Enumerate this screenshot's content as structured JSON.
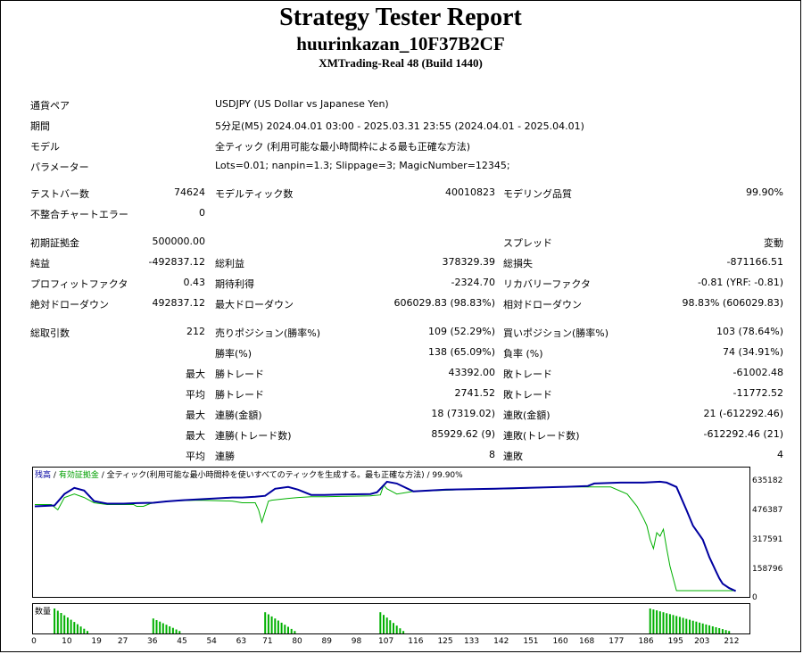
{
  "header": {
    "title": "Strategy Tester Report",
    "ea_name": "huurinkazan_10F37B2CF",
    "server": "XMTrading-Real 48 (Build 1440)"
  },
  "settings": [
    {
      "label": "通貨ペア",
      "value": "USDJPY (US Dollar vs Japanese Yen)"
    },
    {
      "label": "期間",
      "value": "5分足(M5) 2024.04.01 03:00 - 2025.03.31 23:55 (2024.04.01 - 2025.04.01)"
    },
    {
      "label": "モデル",
      "value": "全ティック (利用可能な最小時間枠による最も正確な方法)"
    },
    {
      "label": "パラメーター",
      "value": "Lots=0.01; nanpin=1.3; Slippage=3; MagicNumber=12345;"
    }
  ],
  "stats": {
    "test_bars": {
      "label": "テストバー数",
      "value": "74624"
    },
    "model_ticks": {
      "label": "モデルティック数",
      "value": "40010823"
    },
    "model_quality": {
      "label": "モデリング品質",
      "value": "99.90%"
    },
    "mismatch_errors": {
      "label": "不整合チャートエラー",
      "value": "0"
    },
    "initial_deposit": {
      "label": "初期証拠金",
      "value": "500000.00"
    },
    "spread": {
      "label": "スプレッド",
      "value": "変動"
    },
    "net_profit": {
      "label": "純益",
      "value": "-492837.12"
    },
    "gross_profit": {
      "label": "総利益",
      "value": "378329.39"
    },
    "gross_loss": {
      "label": "総損失",
      "value": "-871166.51"
    },
    "profit_factor": {
      "label": "プロフィットファクタ",
      "value": "0.43"
    },
    "expected_payoff": {
      "label": "期待利得",
      "value": "-2324.70"
    },
    "recovery_factor": {
      "label": "リカバリーファクタ",
      "value": "-0.81 (YRF: -0.81)"
    },
    "abs_drawdown": {
      "label": "絶対ドローダウン",
      "value": "492837.12"
    },
    "max_drawdown": {
      "label": "最大ドローダウン",
      "value": "606029.83 (98.83%)"
    },
    "rel_drawdown": {
      "label": "相対ドローダウン",
      "value": "98.83% (606029.83)"
    },
    "total_trades": {
      "label": "総取引数",
      "value": "212"
    },
    "short_positions": {
      "label": "売りポジション(勝率%)",
      "value": "109 (52.29%)"
    },
    "long_positions": {
      "label": "買いポジション(勝率%)",
      "value": "103 (78.64%)"
    },
    "win_rate": {
      "label": "勝率(%)",
      "value": "138 (65.09%)"
    },
    "loss_rate": {
      "label": "負率 (%)",
      "value": "74 (34.91%)"
    },
    "max_label": "最大",
    "avg_label": "平均",
    "largest_win": {
      "label": "勝トレード",
      "value": "43392.00"
    },
    "largest_loss": {
      "label": "敗トレード",
      "value": "-61002.48"
    },
    "avg_win": {
      "label": "勝トレード",
      "value": "2741.52"
    },
    "avg_loss": {
      "label": "敗トレード",
      "value": "-11772.52"
    },
    "max_consec_wins": {
      "label": "連勝(金額)",
      "value": "18 (7319.02)"
    },
    "max_consec_losses": {
      "label": "連敗(金額)",
      "value": "21 (-612292.46)"
    },
    "max_consec_profit": {
      "label": "連勝(トレード数)",
      "value": "85929.62 (9)"
    },
    "max_consec_loss": {
      "label": "連敗(トレード数)",
      "value": "-612292.46 (21)"
    },
    "avg_consec_wins": {
      "label": "連勝",
      "value": "8"
    },
    "avg_consec_losses": {
      "label": "連敗",
      "value": "4"
    }
  },
  "chart_data": {
    "type": "line",
    "legend": {
      "balance": "残高",
      "equity": "有効証拠金",
      "description": "全ティック(利用可能な最小時間枠を使いすべてのティックを生成する。最も正確な方法)",
      "quality": "99.90%",
      "sep": "/"
    },
    "y_ticks": [
      "635182",
      "476387",
      "317591",
      "158796",
      "0"
    ],
    "ylim": [
      0,
      660000
    ],
    "x_ticks": [
      "0",
      "10",
      "19",
      "27",
      "36",
      "45",
      "54",
      "63",
      "71",
      "80",
      "89",
      "98",
      "107",
      "116",
      "125",
      "133",
      "142",
      "151",
      "160",
      "168",
      "177",
      "186",
      "195",
      "203",
      "212"
    ],
    "xlim": [
      0,
      215
    ],
    "colors": {
      "balance": "#0000a0",
      "equity": "#00b000",
      "volume": "#00b000"
    },
    "series": [
      {
        "name": "残高",
        "x": [
          0,
          6,
          9,
          12,
          15,
          18,
          22,
          27,
          31,
          36,
          40,
          45,
          50,
          55,
          60,
          63,
          67,
          70,
          73,
          77,
          80,
          84,
          88,
          95,
          102,
          104,
          107,
          110,
          115,
          125,
          140,
          150,
          160,
          168,
          170,
          178,
          185,
          190,
          192,
          195,
          198,
          200,
          203,
          205,
          207,
          208,
          209,
          211,
          213
        ],
        "y": [
          490000,
          495000,
          560000,
          595000,
          580000,
          520000,
          505000,
          505000,
          508000,
          510000,
          518000,
          525000,
          530000,
          535000,
          540000,
          540000,
          545000,
          550000,
          590000,
          600000,
          585000,
          555000,
          555000,
          558000,
          560000,
          570000,
          630000,
          620000,
          575000,
          585000,
          590000,
          595000,
          600000,
          605000,
          620000,
          625000,
          625000,
          630000,
          625000,
          600000,
          470000,
          380000,
          300000,
          200000,
          120000,
          80000,
          50000,
          25000,
          8000
        ]
      },
      {
        "name": "有効証拠金",
        "x": [
          0,
          5,
          7,
          9,
          12,
          15,
          18,
          22,
          30,
          31,
          33,
          35,
          40,
          50,
          60,
          63,
          67,
          68,
          69,
          70,
          71,
          72,
          77,
          80,
          84,
          88,
          102,
          105,
          106,
          107,
          109,
          110,
          115,
          130,
          145,
          160,
          175,
          180,
          183,
          185,
          186,
          187,
          188,
          189,
          190,
          191,
          192,
          193,
          195,
          200,
          205,
          210,
          213
        ],
        "y": [
          500000,
          500000,
          470000,
          540000,
          560000,
          540000,
          510000,
          500000,
          500000,
          490000,
          490000,
          505000,
          520000,
          525000,
          520000,
          510000,
          510000,
          470000,
          400000,
          460000,
          520000,
          525000,
          535000,
          540000,
          545000,
          545000,
          550000,
          555000,
          610000,
          590000,
          570000,
          560000,
          575000,
          585000,
          590000,
          600000,
          600000,
          560000,
          490000,
          420000,
          380000,
          300000,
          250000,
          340000,
          320000,
          360000,
          250000,
          150000,
          10000,
          10000,
          10000,
          10000,
          10000
        ]
      }
    ],
    "volume_label": "数量",
    "volume": [
      {
        "from": 6,
        "to": 16,
        "start": 1.0,
        "end": 0.1
      },
      {
        "from": 36,
        "to": 44,
        "start": 0.6,
        "end": 0.1
      },
      {
        "from": 70,
        "to": 79,
        "start": 0.85,
        "end": 0.1
      },
      {
        "from": 105,
        "to": 112,
        "start": 0.85,
        "end": 0.1
      },
      {
        "from": 187,
        "to": 211,
        "start": 1.0,
        "end": 0.1
      }
    ]
  }
}
